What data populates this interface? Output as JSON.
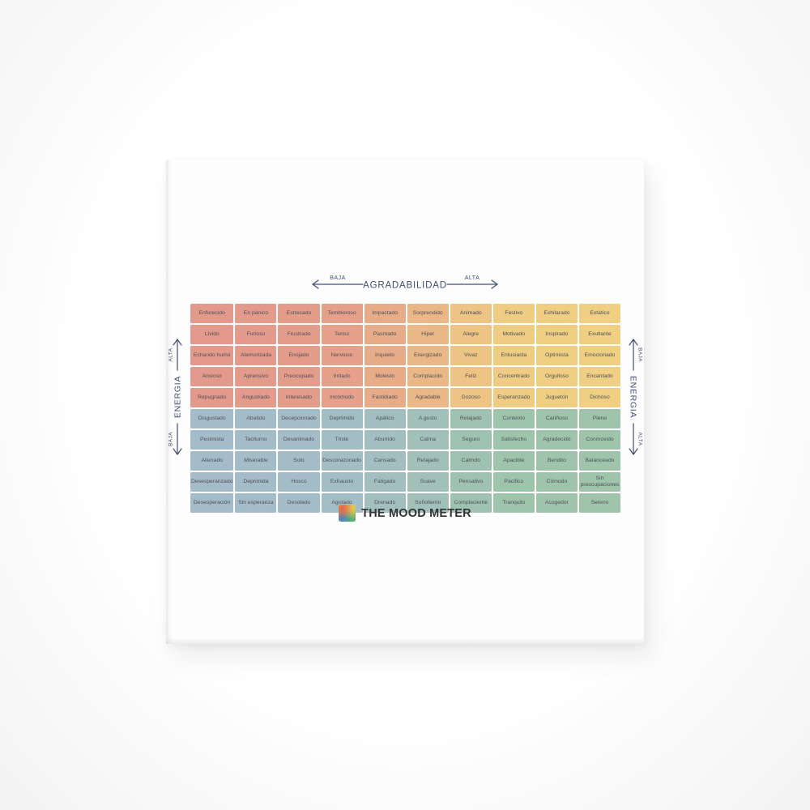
{
  "poster": {
    "top_axis": {
      "low": "BAJA",
      "label": "AGRADABILIDAD",
      "high": "ALTA"
    },
    "left_axis": {
      "low": "BAJA",
      "label": "ENERGIA",
      "high": "ALTA"
    },
    "right_axis": {
      "low": "BAJA",
      "label": "ENERGIA",
      "high": "ALTA"
    },
    "colors": {
      "axis_text": "#3e4e74",
      "cell_text": "#4f5058",
      "quadrant_red": "#e49a8c",
      "quadrant_yellow": "#f0d083",
      "quadrant_blue": "#a5bdca",
      "quadrant_green": "#9fc5ab"
    },
    "grid": {
      "rows": [
        [
          "Enfurecido",
          "En pánico",
          "Estresado",
          "Tembloroso",
          "Impactado",
          "Sorprendido",
          "Animado",
          "Festivo",
          "Exhilarado",
          "Extático"
        ],
        [
          "Lívido",
          "Furioso",
          "Frustrado",
          "Tenso",
          "Pasmado",
          "Hiper",
          "Alegre",
          "Motivado",
          "Inspirado",
          "Exultante"
        ],
        [
          "Echando humo",
          "Atemorizada",
          "Enojado",
          "Nervioso",
          "Inquieto",
          "Energizado",
          "Vivaz",
          "Entusiasta",
          "Optimista",
          "Emocionado"
        ],
        [
          "Ansioso",
          "Aprensivo",
          "Preocupado",
          "Irritado",
          "Molesto",
          "Complacido",
          "Feliz",
          "Concentrado",
          "Orgulloso",
          "Encantado"
        ],
        [
          "Repugnado",
          "Angustiado",
          "Interesado",
          "Incómodo",
          "Fastidiado",
          "Agradable",
          "Gozoso",
          "Esperanzado",
          "Juguetón",
          "Dichoso"
        ],
        [
          "Disgustado",
          "Abatido",
          "Decepcionado",
          "Deprimido",
          "Apático",
          "A gusto",
          "Relajado",
          "Contento",
          "Cariñoso",
          "Pleno"
        ],
        [
          "Pesimista",
          "Taciturno",
          "Desanimado",
          "Triste",
          "Aburrido",
          "Calma",
          "Seguro",
          "Satisfecho",
          "Agradecido",
          "Conmovido"
        ],
        [
          "Alienado",
          "Miserable",
          "Solo",
          "Descorazonado",
          "Cansado",
          "Relajado",
          "Calmdo",
          "Apacible",
          "Bendito",
          "Balanceado"
        ],
        [
          "Desesperanzado",
          "Deprimida",
          "Hosco",
          "Exhausto",
          "Fatigado",
          "Suave",
          "Pensativo",
          "Pacifico",
          "Cómodo",
          "Sin preocupaciones"
        ],
        [
          "Desesperación",
          "Sin esperanza",
          "Desolado",
          "Agotado",
          "Drenado",
          "Soñoliento",
          "Complaciente",
          "Tranquilo",
          "Acogedor",
          "Sereno"
        ]
      ]
    },
    "logo": {
      "text": "THE MOOD METER",
      "icon_colors": [
        "#e8604c",
        "#f2c94c",
        "#4480c8",
        "#55b46e"
      ]
    }
  }
}
